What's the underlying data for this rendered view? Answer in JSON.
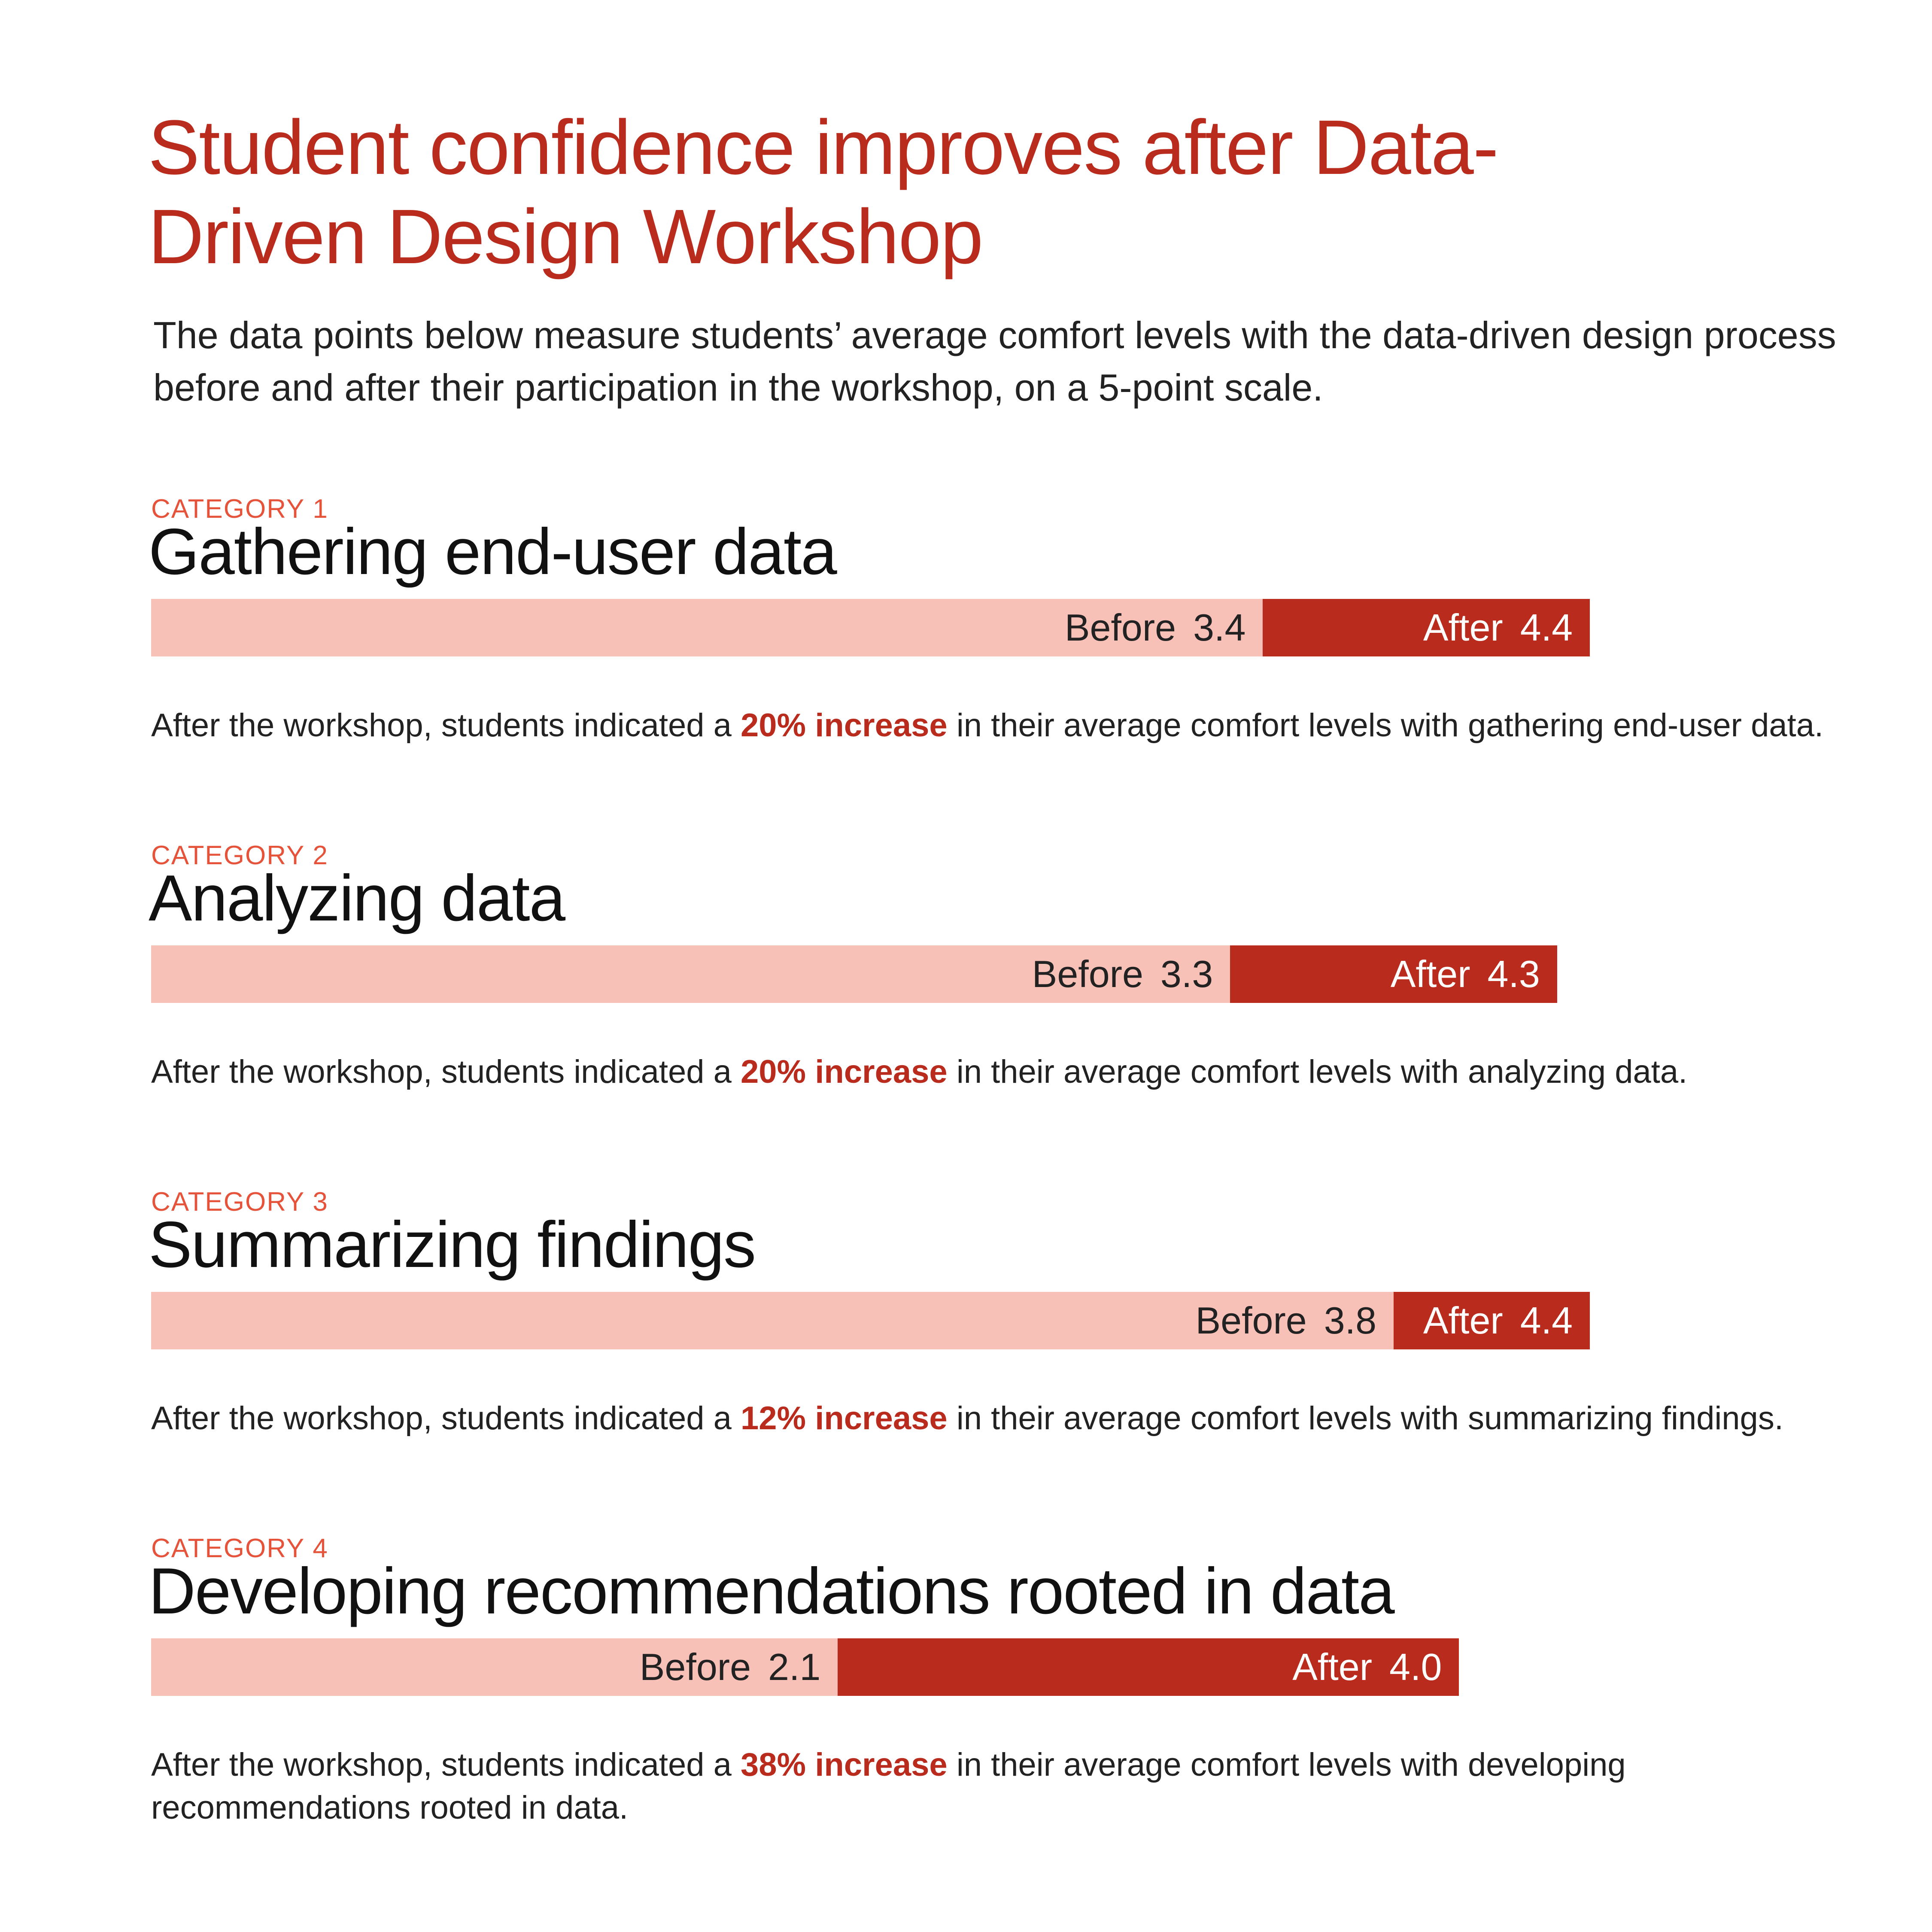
{
  "title": "Student confidence improves after Data-Driven Design Workshop",
  "subtitle": "The data points below measure students’ average comfort levels with the data-driven design process before and after their participation in the workshop, on a 5-point scale.",
  "chart_data": [
    {
      "type": "bar",
      "eyebrow": "CATEGORY 1",
      "title": "Gathering end-user data",
      "xlim": [
        0,
        5
      ],
      "series": [
        {
          "name": "Before",
          "color": "#f8c1b8",
          "values": [
            3.4
          ]
        },
        {
          "name": "After",
          "color": "#b92b1d",
          "values": [
            4.4
          ]
        }
      ],
      "note": {
        "lead": "After the workshop, students indicated a ",
        "highlight": "20% increase",
        "tail": " in their average comfort levels with gathering end-user data."
      }
    },
    {
      "type": "bar",
      "eyebrow": "CATEGORY 2",
      "title": "Analyzing data",
      "xlim": [
        0,
        5
      ],
      "series": [
        {
          "name": "Before",
          "color": "#f8c1b8",
          "values": [
            3.3
          ]
        },
        {
          "name": "After",
          "color": "#b92b1d",
          "values": [
            4.3
          ]
        }
      ],
      "note": {
        "lead": "After the workshop, students indicated a ",
        "highlight": "20% increase",
        "tail": " in their average comfort levels with analyzing data."
      }
    },
    {
      "type": "bar",
      "eyebrow": "CATEGORY 3",
      "title": "Summarizing findings",
      "xlim": [
        0,
        5
      ],
      "series": [
        {
          "name": "Before",
          "color": "#f8c1b8",
          "values": [
            3.8
          ]
        },
        {
          "name": "After",
          "color": "#b92b1d",
          "values": [
            4.4
          ]
        }
      ],
      "note": {
        "lead": "After the workshop, students indicated a ",
        "highlight": "12% increase",
        "tail": " in their average comfort levels with summarizing findings."
      }
    },
    {
      "type": "bar",
      "eyebrow": "CATEGORY 4",
      "title": "Developing recommendations rooted in data",
      "xlim": [
        0,
        5
      ],
      "series": [
        {
          "name": "Before",
          "color": "#f8c1b8",
          "values": [
            2.1
          ]
        },
        {
          "name": "After",
          "color": "#b92b1d",
          "values": [
            4.0
          ],
          "value_labels": [
            "4.0"
          ]
        }
      ],
      "note": {
        "lead": "After the workshop, students indicated a ",
        "highlight": "38% increase",
        "tail": " in their average comfort levels with developing recommendations rooted in data."
      }
    }
  ]
}
